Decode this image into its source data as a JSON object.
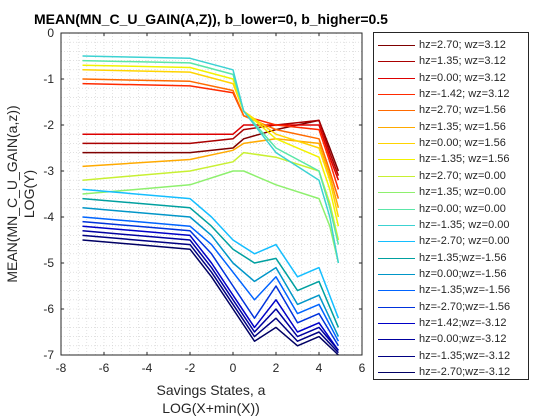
{
  "chart_data": {
    "type": "line",
    "title": "MEAN(MN_C_U_GAIN(A,Z)), b_lower=0, b_higher=0.5",
    "xlabel": [
      "Savings States, a",
      "LOG(X+min(X))"
    ],
    "ylabel": [
      "MEAN(MN_C_U_GAIN(a,z))",
      "LOG(Y)"
    ],
    "xlim": [
      -8,
      6
    ],
    "ylim": [
      -7,
      0
    ],
    "xticks": [
      -8,
      -6,
      -4,
      -2,
      0,
      2,
      4,
      6
    ],
    "yticks": [
      0,
      -1,
      -2,
      -3,
      -4,
      -5,
      -6,
      -7
    ],
    "grid": "minor-dotted",
    "legend_position": "outside-right",
    "series": [
      {
        "name": "hz=2.70; wz=3.12",
        "color": "#7f0000",
        "x": [
          -7,
          -2,
          0,
          0.5,
          2,
          4,
          4.5,
          4.9
        ],
        "y": [
          -2.6,
          -2.6,
          -2.5,
          -2.3,
          -2.1,
          -1.9,
          -2.5,
          -3.0
        ]
      },
      {
        "name": "hz=1.35; wz=3.12",
        "color": "#aa0000",
        "x": [
          -7,
          -2,
          0,
          0.5,
          2,
          4,
          4.5,
          4.9
        ],
        "y": [
          -2.4,
          -2.4,
          -2.3,
          -2.1,
          -2.0,
          -1.9,
          -2.6,
          -3.1
        ]
      },
      {
        "name": "hz=0.00; wz=3.12",
        "color": "#dd0000",
        "x": [
          -7,
          -2,
          0,
          0.5,
          2,
          4,
          4.5,
          4.9
        ],
        "y": [
          -2.2,
          -2.2,
          -2.2,
          -2.0,
          -2.0,
          -2.0,
          -2.7,
          -3.2
        ]
      },
      {
        "name": "hz=-1.42; wz=3.12",
        "color": "#ff2a00",
        "x": [
          -7,
          -2,
          0,
          0.5,
          2,
          4,
          4.5,
          4.9
        ],
        "y": [
          -1.1,
          -1.15,
          -1.3,
          -1.8,
          -2.0,
          -2.1,
          -2.8,
          -3.4
        ]
      },
      {
        "name": "hz=2.70; wz=1.56",
        "color": "#ff6a00",
        "x": [
          -7,
          -2,
          0,
          0.5,
          2,
          4,
          4.5,
          4.9
        ],
        "y": [
          -1.0,
          -1.05,
          -1.25,
          -1.8,
          -2.1,
          -2.3,
          -3.0,
          -3.6
        ]
      },
      {
        "name": "hz=1.35; wz=1.56",
        "color": "#ffaa00",
        "x": [
          -7,
          -2,
          0,
          0.5,
          2,
          4,
          4.5,
          4.9
        ],
        "y": [
          -2.9,
          -2.75,
          -2.55,
          -2.4,
          -2.3,
          -2.4,
          -3.1,
          -3.8
        ]
      },
      {
        "name": "hz=0.00; wz=1.56",
        "color": "#ffd400",
        "x": [
          -7,
          -2,
          0,
          0.5,
          2,
          4,
          4.5,
          4.9
        ],
        "y": [
          -0.8,
          -0.85,
          -1.1,
          -1.7,
          -2.2,
          -2.5,
          -3.2,
          -4.0
        ]
      },
      {
        "name": "hz=-1.35; wz=1.56",
        "color": "#f2f200",
        "x": [
          -7,
          -2,
          0,
          0.5,
          2,
          4,
          4.5,
          4.9
        ],
        "y": [
          -0.7,
          -0.75,
          -1.0,
          -1.7,
          -2.3,
          -2.7,
          -3.4,
          -4.2
        ]
      },
      {
        "name": "hz=2.70; wz=0.00",
        "color": "#c8f032",
        "x": [
          -7,
          -2,
          0,
          0.5,
          2,
          4,
          4.5,
          4.9
        ],
        "y": [
          -3.2,
          -3.0,
          -2.8,
          -2.6,
          -2.7,
          -3.0,
          -3.7,
          -4.5
        ]
      },
      {
        "name": "hz=1.35; wz=0.00",
        "color": "#8ef06e",
        "x": [
          -7,
          -2,
          0,
          0.5,
          2,
          4,
          4.5,
          4.9
        ],
        "y": [
          -3.5,
          -3.3,
          -3.0,
          -3.0,
          -3.3,
          -3.6,
          -4.2,
          -5.0
        ]
      },
      {
        "name": "hz=0.00; wz=0.00",
        "color": "#5ae6a8",
        "x": [
          -7,
          -2,
          0,
          0.5,
          2,
          4,
          4.5,
          4.9
        ],
        "y": [
          -0.6,
          -0.65,
          -0.9,
          -1.7,
          -2.5,
          -3.0,
          -3.8,
          -4.6
        ]
      },
      {
        "name": "hz=-1.35; wz=0.00",
        "color": "#3cd2d2",
        "x": [
          -7,
          -2,
          0,
          0.5,
          2,
          4,
          4.5,
          4.9
        ],
        "y": [
          -0.5,
          -0.55,
          -0.8,
          -1.7,
          -2.6,
          -3.2,
          -4.0,
          -5.0
        ]
      },
      {
        "name": "hz=-2.70; wz=0.00",
        "color": "#14beff",
        "x": [
          -7,
          -2,
          -1,
          0,
          1,
          2,
          3,
          4,
          4.9
        ],
        "y": [
          -3.4,
          -3.6,
          -4.0,
          -4.5,
          -4.8,
          -4.6,
          -5.3,
          -5.1,
          -6.2
        ]
      },
      {
        "name": "hz=1.35;wz=-1.56",
        "color": "#00a0a0",
        "x": [
          -7,
          -2,
          -1,
          0,
          1,
          2,
          3,
          4,
          4.9
        ],
        "y": [
          -3.6,
          -3.8,
          -4.2,
          -4.7,
          -5.0,
          -4.9,
          -5.6,
          -5.4,
          -6.4
        ]
      },
      {
        "name": "hz=0.00;wz=-1.56",
        "color": "#0096c8",
        "x": [
          -7,
          -2,
          -1,
          0,
          1,
          2,
          3,
          4,
          4.9
        ],
        "y": [
          -3.8,
          -4.0,
          -4.4,
          -5.0,
          -5.4,
          -5.1,
          -5.9,
          -5.7,
          -6.6
        ]
      },
      {
        "name": "hz=-1.35;wz=-1.56",
        "color": "#0064ff",
        "x": [
          -7,
          -2,
          -1,
          0,
          1,
          2,
          3,
          4,
          4.9
        ],
        "y": [
          -4.0,
          -4.2,
          -4.6,
          -5.2,
          -5.8,
          -5.3,
          -6.1,
          -5.9,
          -6.7
        ]
      },
      {
        "name": "hz=-2.70;wz=-1.56",
        "color": "#0032dc",
        "x": [
          -7,
          -2,
          -1,
          0,
          1,
          2,
          3,
          4,
          4.9
        ],
        "y": [
          -4.1,
          -4.3,
          -4.8,
          -5.5,
          -6.2,
          -5.5,
          -6.3,
          -6.1,
          -6.8
        ]
      },
      {
        "name": "hz=1.42;wz=-3.12",
        "color": "#0000c8",
        "x": [
          -7,
          -2,
          -1,
          0,
          1,
          2,
          3,
          4,
          4.9
        ],
        "y": [
          -4.2,
          -4.4,
          -5.0,
          -5.7,
          -6.4,
          -5.8,
          -6.5,
          -6.3,
          -6.9
        ]
      },
      {
        "name": "hz=0.00;wz=-3.12",
        "color": "#0000a0",
        "x": [
          -7,
          -2,
          -1,
          0,
          1,
          2,
          3,
          4,
          4.9
        ],
        "y": [
          -4.3,
          -4.5,
          -5.1,
          -5.8,
          -6.5,
          -6.0,
          -6.6,
          -6.4,
          -6.9
        ]
      },
      {
        "name": "hz=-1.35;wz=-3.12",
        "color": "#000082",
        "x": [
          -7,
          -2,
          -1,
          0,
          1,
          2,
          3,
          4,
          4.9
        ],
        "y": [
          -4.4,
          -4.6,
          -5.2,
          -5.9,
          -6.6,
          -6.2,
          -6.7,
          -6.5,
          -6.95
        ]
      },
      {
        "name": "hz=-2.70;wz=-3.12",
        "color": "#000064",
        "x": [
          -7,
          -2,
          -1,
          0,
          1,
          2,
          3,
          4,
          4.9
        ],
        "y": [
          -4.5,
          -4.7,
          -5.3,
          -6.0,
          -6.7,
          -6.4,
          -6.8,
          -6.6,
          -7.0
        ]
      }
    ]
  }
}
